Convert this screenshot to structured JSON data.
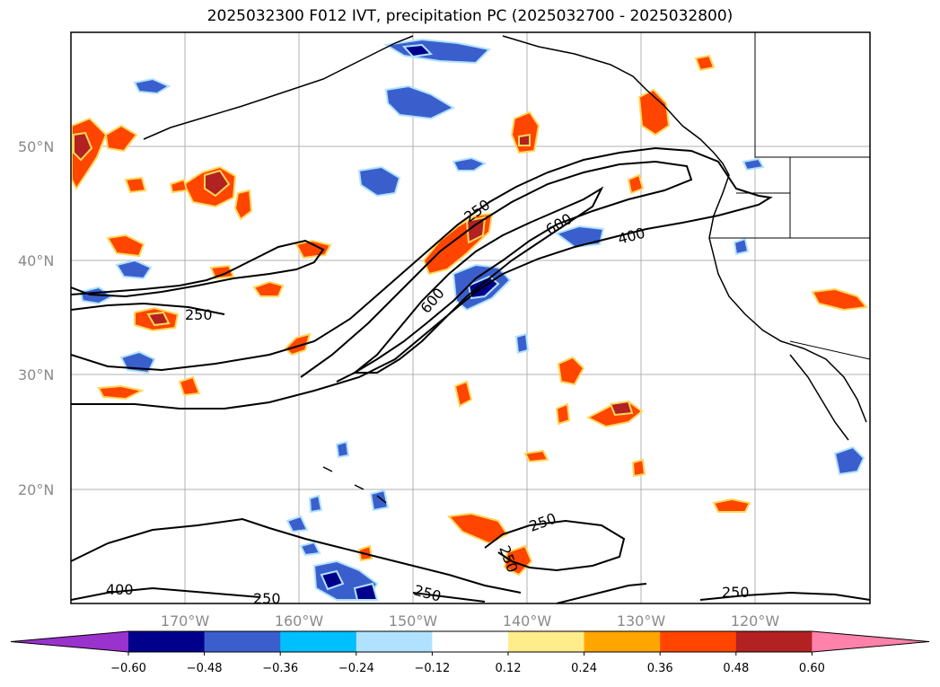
{
  "title": "2025032300 F012 IVT, precipitation PC (2025032700 - 2025032800)",
  "map": {
    "lon_range": [
      -180,
      -110
    ],
    "lat_range": [
      10,
      60
    ],
    "lat_labels": [
      "50°N",
      "40°N",
      "30°N",
      "20°N"
    ],
    "lon_labels": [
      "170°W",
      "160°W",
      "150°W",
      "140°W",
      "130°W",
      "120°W"
    ],
    "contour_labels": [
      "250",
      "250",
      "600",
      "600",
      "400",
      "400",
      "250",
      "250",
      "250",
      "250",
      "250"
    ]
  },
  "colorbar": {
    "tick_labels": [
      "−0.60",
      "−0.48",
      "−0.36",
      "−0.24",
      "−0.12",
      "0.12",
      "0.24",
      "0.36",
      "0.48",
      "0.60"
    ],
    "colors": [
      "#9a32cd",
      "#00008b",
      "#3a5fcd",
      "#00bfff",
      "#b0e2ff",
      "#ffffff",
      "#ffec8b",
      "#ffa500",
      "#ff4500",
      "#b22222",
      "#ff82ab"
    ]
  }
}
